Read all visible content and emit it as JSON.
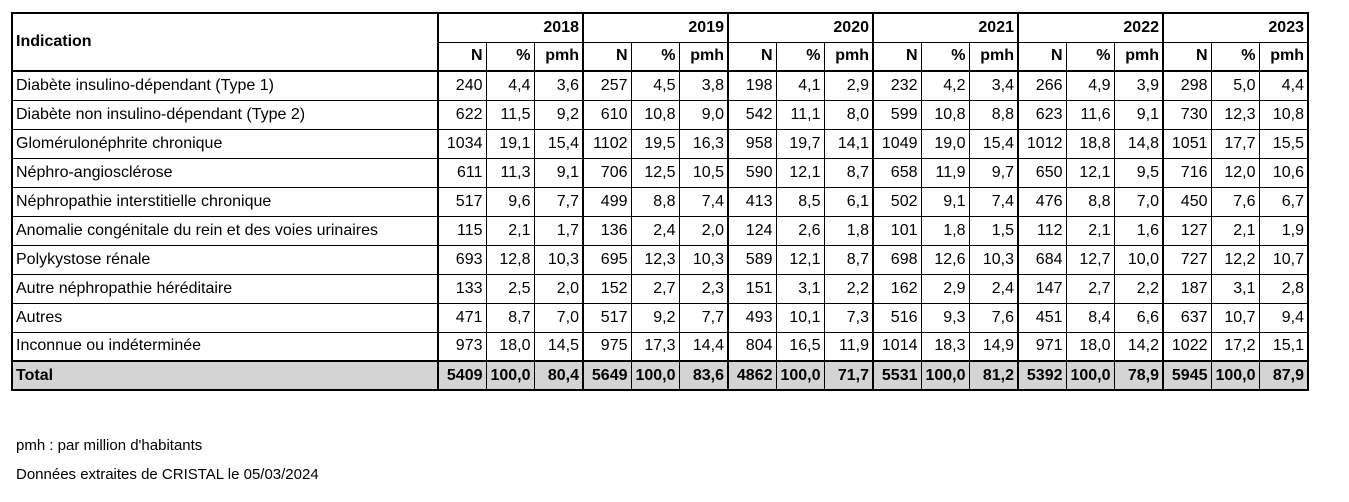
{
  "table": {
    "indication_header": "Indication",
    "years": [
      "2018",
      "2019",
      "2020",
      "2021",
      "2022",
      "2023"
    ],
    "sub_headers": [
      "N",
      "%",
      "pmh"
    ],
    "rows": [
      {
        "label": "Diabète insulino-dépendant (Type 1)",
        "cells": [
          "240",
          "4,4",
          "3,6",
          "257",
          "4,5",
          "3,8",
          "198",
          "4,1",
          "2,9",
          "232",
          "4,2",
          "3,4",
          "266",
          "4,9",
          "3,9",
          "298",
          "5,0",
          "4,4"
        ]
      },
      {
        "label": "Diabète non insulino-dépendant (Type 2)",
        "cells": [
          "622",
          "11,5",
          "9,2",
          "610",
          "10,8",
          "9,0",
          "542",
          "11,1",
          "8,0",
          "599",
          "10,8",
          "8,8",
          "623",
          "11,6",
          "9,1",
          "730",
          "12,3",
          "10,8"
        ]
      },
      {
        "label": "Glomérulonéphrite chronique",
        "cells": [
          "1034",
          "19,1",
          "15,4",
          "1102",
          "19,5",
          "16,3",
          "958",
          "19,7",
          "14,1",
          "1049",
          "19,0",
          "15,4",
          "1012",
          "18,8",
          "14,8",
          "1051",
          "17,7",
          "15,5"
        ]
      },
      {
        "label": "Néphro-angiosclérose",
        "cells": [
          "611",
          "11,3",
          "9,1",
          "706",
          "12,5",
          "10,5",
          "590",
          "12,1",
          "8,7",
          "658",
          "11,9",
          "9,7",
          "650",
          "12,1",
          "9,5",
          "716",
          "12,0",
          "10,6"
        ]
      },
      {
        "label": "Néphropathie interstitielle chronique",
        "cells": [
          "517",
          "9,6",
          "7,7",
          "499",
          "8,8",
          "7,4",
          "413",
          "8,5",
          "6,1",
          "502",
          "9,1",
          "7,4",
          "476",
          "8,8",
          "7,0",
          "450",
          "7,6",
          "6,7"
        ]
      },
      {
        "label": "Anomalie congénitale du rein et des voies urinaires",
        "cells": [
          "115",
          "2,1",
          "1,7",
          "136",
          "2,4",
          "2,0",
          "124",
          "2,6",
          "1,8",
          "101",
          "1,8",
          "1,5",
          "112",
          "2,1",
          "1,6",
          "127",
          "2,1",
          "1,9"
        ]
      },
      {
        "label": "Polykystose rénale",
        "cells": [
          "693",
          "12,8",
          "10,3",
          "695",
          "12,3",
          "10,3",
          "589",
          "12,1",
          "8,7",
          "698",
          "12,6",
          "10,3",
          "684",
          "12,7",
          "10,0",
          "727",
          "12,2",
          "10,7"
        ]
      },
      {
        "label": "Autre néphropathie héréditaire",
        "cells": [
          "133",
          "2,5",
          "2,0",
          "152",
          "2,7",
          "2,3",
          "151",
          "3,1",
          "2,2",
          "162",
          "2,9",
          "2,4",
          "147",
          "2,7",
          "2,2",
          "187",
          "3,1",
          "2,8"
        ]
      },
      {
        "label": "Autres",
        "cells": [
          "471",
          "8,7",
          "7,0",
          "517",
          "9,2",
          "7,7",
          "493",
          "10,1",
          "7,3",
          "516",
          "9,3",
          "7,6",
          "451",
          "8,4",
          "6,6",
          "637",
          "10,7",
          "9,4"
        ]
      },
      {
        "label": "Inconnue ou indéterminée",
        "cells": [
          "973",
          "18,0",
          "14,5",
          "975",
          "17,3",
          "14,4",
          "804",
          "16,5",
          "11,9",
          "1014",
          "18,3",
          "14,9",
          "971",
          "18,0",
          "14,2",
          "1022",
          "17,2",
          "15,1"
        ]
      }
    ],
    "total": {
      "label": "Total",
      "cells": [
        "5409",
        "100,0",
        "80,4",
        "5649",
        "100,0",
        "83,6",
        "4862",
        "100,0",
        "71,7",
        "5531",
        "100,0",
        "81,2",
        "5392",
        "100,0",
        "78,9",
        "5945",
        "100,0",
        "87,9"
      ]
    },
    "colors": {
      "total_background": "#d4d4d4",
      "border": "#000000"
    }
  },
  "notes": {
    "pmh": "pmh : par million d'habitants",
    "source": "Données extraites de CRISTAL le 05/03/2024"
  }
}
